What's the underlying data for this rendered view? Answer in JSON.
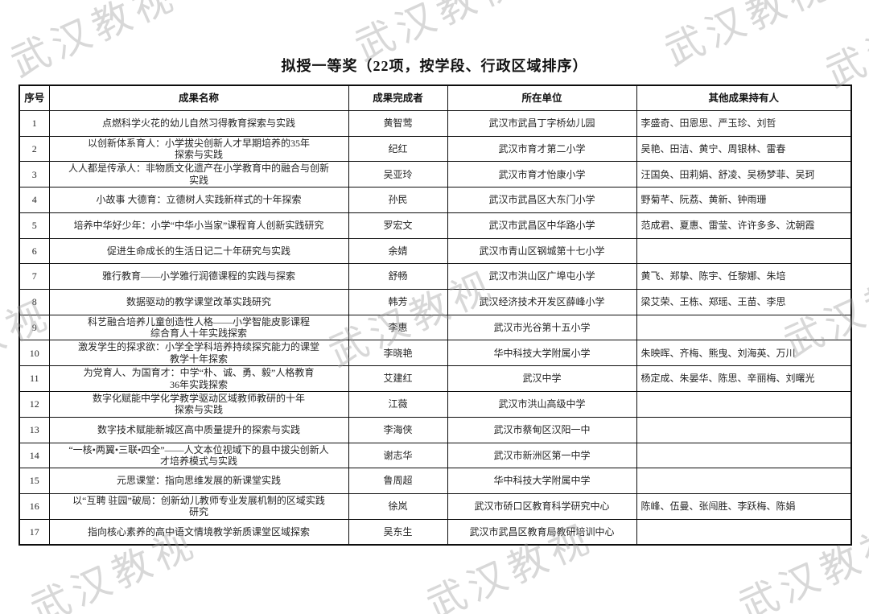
{
  "title": "拟授一等奖（22项，按学段、行政区域排序）",
  "watermark": {
    "text": "武汉教视"
  },
  "table": {
    "columns": [
      "序号",
      "成果名称",
      "成果完成者",
      "所在单位",
      "其他成果持有人"
    ],
    "rows": [
      {
        "no": "1",
        "achievement": "点燃科学火花的幼儿自然习得教育探索与实践",
        "completer": "黄智莺",
        "unit": "武汉市武昌丁字桥幼儿园",
        "holders": "李盛奇、田恩思、严玉珍、刘哲"
      },
      {
        "no": "2",
        "achievement": "以创新体系育人：小学拔尖创新人才早期培养的35年\n探索与实践",
        "completer": "纪红",
        "unit": "武汉市育才第二小学",
        "holders": "吴艳、田洁、黄宁、周银林、雷春"
      },
      {
        "no": "3",
        "achievement": "人人都是传承人：非物质文化遗产在小学教育中的融合与创新\n实践",
        "completer": "吴亚玲",
        "unit": "武汉市育才怡康小学",
        "holders": "汪国奂、田莉娟、舒凌、吴杨梦菲、吴珂"
      },
      {
        "no": "4",
        "achievement": "小故事 大德育：立德树人实践新样式的十年探索",
        "completer": "孙民",
        "unit": "武汉市武昌区大东门小学",
        "holders": "野菊芊、阮荔、黄新、钟雨珊"
      },
      {
        "no": "5",
        "achievement": "培养中华好少年：小学“中华小当家”课程育人创新实践研究",
        "completer": "罗宏文",
        "unit": "武汉市武昌区中华路小学",
        "holders": "范成君、夏惠、雷莹、许许多多、沈朝霞"
      },
      {
        "no": "6",
        "achievement": "促进生命成长的生活日记二十年研究与实践",
        "completer": "余婧",
        "unit": "武汉市青山区钢城第十七小学",
        "holders": ""
      },
      {
        "no": "7",
        "achievement": "雅行教育——小学雅行润德课程的实践与探索",
        "completer": "舒畅",
        "unit": "武汉市洪山区广埠屯小学",
        "holders": "黄飞、郑挚、陈宇、任黎娜、朱培"
      },
      {
        "no": "8",
        "achievement": "数据驱动的教学课堂改革实践研究",
        "completer": "韩芳",
        "unit": "武汉经济技术开发区薛峰小学",
        "holders": "梁艾荣、王栋、郑瑶、王苗、李思"
      },
      {
        "no": "9",
        "achievement": "科艺融合培养儿童创造性人格——小学智能皮影课程\n综合育人十年实践探索",
        "completer": "李惠",
        "unit": "武汉市光谷第十五小学",
        "holders": ""
      },
      {
        "no": "10",
        "achievement": "激发学生的探求欲：小学全学科培养持续探究能力的课堂\n教学十年探索",
        "completer": "李晓艳",
        "unit": "华中科技大学附属小学",
        "holders": "朱映晖、齐梅、熊曳、刘海英、万川"
      },
      {
        "no": "11",
        "achievement": "为党育人、为国育才：中学“朴、诚、勇、毅”人格教育\n36年实践探索",
        "completer": "艾建红",
        "unit": "武汉中学",
        "holders": "杨定成、朱晏华、陈思、辛丽梅、刘曙光"
      },
      {
        "no": "12",
        "achievement": "数字化赋能中学化学教学驱动区域教师教研的十年\n探索与实践",
        "completer": "江薇",
        "unit": "武汉市洪山高级中学",
        "holders": ""
      },
      {
        "no": "13",
        "achievement": "数字技术赋能新城区高中质量提升的探索与实践",
        "completer": "李海侠",
        "unit": "武汉市蔡甸区汉阳一中",
        "holders": ""
      },
      {
        "no": "14",
        "achievement": "“一核•两翼•三联•四全”——人文本位视域下的县中拔尖创新人\n才培养模式与实践",
        "completer": "谢志华",
        "unit": "武汉市新洲区第一中学",
        "holders": ""
      },
      {
        "no": "15",
        "achievement": "元思课堂：指向思维发展的新课堂实践",
        "completer": "鲁周超",
        "unit": "华中科技大学附属中学",
        "holders": ""
      },
      {
        "no": "16",
        "achievement": "以“互聘 驻园”破局：创新幼儿教师专业发展机制的区域实践\n研究",
        "completer": "徐岚",
        "unit": "武汉市硚口区教育科学研究中心",
        "holders": "陈峰、伍曼、张闯胜、李跃梅、陈娟"
      },
      {
        "no": "17",
        "achievement": "指向核心素养的高中语文情境教学新质课堂区域探索",
        "completer": "吴东生",
        "unit": "武汉市武昌区教育局教研培训中心",
        "holders": ""
      }
    ]
  }
}
